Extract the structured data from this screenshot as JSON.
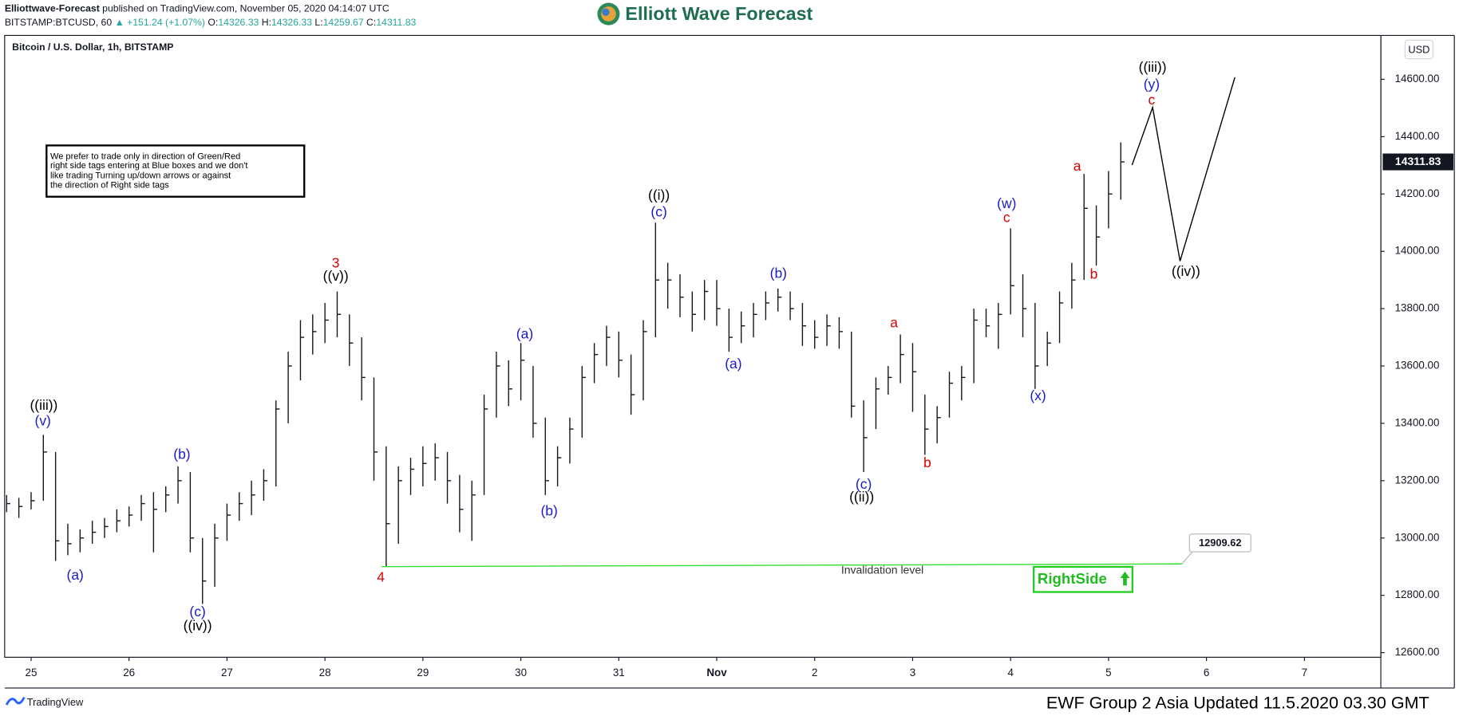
{
  "header": {
    "publisher": "Elliottwave-Forecast",
    "published": "published on TradingView.com, November 05, 2020 04:14:07 UTC",
    "symbol": "BITSTAMP:BTCUSD, 60",
    "change": "▲ +151.24 (+1.07%)",
    "ohlc": [
      {
        "label": "O:",
        "value": "14326.33"
      },
      {
        "label": "H:",
        "value": "14326.33"
      },
      {
        "label": "L:",
        "value": "14259.67"
      },
      {
        "label": "C:",
        "value": "14311.83"
      }
    ],
    "logo": "Elliott Wave Forecast"
  },
  "footer": {
    "brand": "TradingView",
    "update": "EWF Group 2 Asia Updated 11.5.2020 03.30 GMT"
  },
  "chart_data": {
    "type": "ohlc",
    "title": "Bitcoin / U.S. Dollar, 1h, BITSTAMP",
    "currency": "USD",
    "note": [
      "We prefer to trade only in direction of Green/Red",
      "right side tags entering at Blue boxes and we don't",
      "like trading Turning up/down arrows or against",
      "the direction of Right side tags"
    ],
    "badge": "RightSide",
    "color": "#131722",
    "xlim": [
      -0.27,
      13.78
    ],
    "xticks": [
      {
        "value": 0,
        "label": "25"
      },
      {
        "value": 1,
        "label": "26"
      },
      {
        "value": 2,
        "label": "27"
      },
      {
        "value": 3,
        "label": "28"
      },
      {
        "value": 4,
        "label": "29"
      },
      {
        "value": 5,
        "label": "30"
      },
      {
        "value": 6,
        "label": "31"
      },
      {
        "value": 7,
        "label": "Nov"
      },
      {
        "value": 8,
        "label": "2"
      },
      {
        "value": 9,
        "label": "3"
      },
      {
        "value": 10,
        "label": "4"
      },
      {
        "value": 11,
        "label": "5"
      },
      {
        "value": 12,
        "label": "6"
      },
      {
        "value": 13,
        "label": "7"
      }
    ],
    "ylim": [
      12584,
      14753
    ],
    "yticks": [
      {
        "value": 12600,
        "label": "12600.00"
      },
      {
        "value": 12800,
        "label": "12800.00"
      },
      {
        "value": 13000,
        "label": "13000.00"
      },
      {
        "value": 13200,
        "label": "13200.00"
      },
      {
        "value": 13400,
        "label": "13400.00"
      },
      {
        "value": 13600,
        "label": "13600.00"
      },
      {
        "value": 13800,
        "label": "13800.00"
      },
      {
        "value": 14000,
        "label": "14000.00"
      },
      {
        "value": 14200,
        "label": "14200.00"
      },
      {
        "value": 14400,
        "label": "14400.00"
      },
      {
        "value": 14600,
        "label": "14600.00"
      }
    ],
    "x": [
      -0.25,
      -0.125,
      0,
      0.125,
      0.25,
      0.375,
      0.5,
      0.625,
      0.75,
      0.875,
      1,
      1.125,
      1.25,
      1.375,
      1.5,
      1.625,
      1.75,
      1.875,
      2,
      2.125,
      2.25,
      2.375,
      2.5,
      2.625,
      2.75,
      2.875,
      3,
      3.125,
      3.25,
      3.375,
      3.5,
      3.625,
      3.75,
      3.875,
      4,
      4.125,
      4.25,
      4.375,
      4.5,
      4.625,
      4.75,
      4.875,
      5,
      5.125,
      5.25,
      5.375,
      5.5,
      5.625,
      5.75,
      5.875,
      6,
      6.125,
      6.25,
      6.375,
      6.5,
      6.625,
      6.75,
      6.875,
      7,
      7.125,
      7.25,
      7.375,
      7.5,
      7.625,
      7.75,
      7.875,
      8,
      8.125,
      8.25,
      8.375,
      8.5,
      8.625,
      8.75,
      8.875,
      9,
      9.125,
      9.25,
      9.375,
      9.5,
      9.625,
      9.75,
      9.875,
      10,
      10.125,
      10.25,
      10.375,
      10.5,
      10.625,
      10.75,
      10.875,
      11,
      11.125
    ],
    "high": [
      13150,
      13140,
      13160,
      13360,
      13300,
      13050,
      13030,
      13060,
      13070,
      13100,
      13110,
      13150,
      13160,
      13180,
      13250,
      13230,
      13000,
      13050,
      13120,
      13160,
      13200,
      13240,
      13480,
      13650,
      13760,
      13780,
      13820,
      13860,
      13780,
      13700,
      13560,
      13320,
      13250,
      13280,
      13320,
      13330,
      13300,
      13220,
      13200,
      13500,
      13650,
      13620,
      13680,
      13600,
      13420,
      13320,
      13420,
      13600,
      13680,
      13740,
      13720,
      13640,
      13760,
      14100,
      13960,
      13920,
      13860,
      13900,
      13900,
      13800,
      13790,
      13820,
      13860,
      13870,
      13860,
      13820,
      13760,
      13780,
      13770,
      13720,
      13480,
      13560,
      13600,
      13710,
      13680,
      13500,
      13460,
      13580,
      13600,
      13800,
      13800,
      13820,
      14080,
      13920,
      13820,
      13720,
      13860,
      13960,
      14270,
      14160,
      14280,
      14380
    ],
    "low": [
      13090,
      13070,
      13100,
      13130,
      12920,
      12940,
      12950,
      12980,
      13000,
      13020,
      13040,
      13060,
      12950,
      13090,
      13120,
      12950,
      12770,
      12830,
      12990,
      13060,
      13080,
      13130,
      13180,
      13400,
      13550,
      13640,
      13680,
      13700,
      13600,
      13480,
      13200,
      12900,
      12980,
      13150,
      13180,
      13200,
      13120,
      13020,
      12990,
      13150,
      13420,
      13460,
      13480,
      13350,
      13150,
      13180,
      13260,
      13350,
      13540,
      13600,
      13560,
      13430,
      13480,
      13700,
      13800,
      13770,
      13720,
      13760,
      13740,
      13650,
      13680,
      13700,
      13760,
      13790,
      13760,
      13670,
      13660,
      13670,
      13660,
      13420,
      13230,
      13380,
      13500,
      13540,
      13440,
      13290,
      13330,
      13420,
      13480,
      13540,
      13700,
      13660,
      13780,
      13700,
      13520,
      13600,
      13680,
      13800,
      13900,
      13950,
      14080,
      14180
    ],
    "close": [
      13120,
      13110,
      13130,
      13300,
      12990,
      12980,
      13000,
      13020,
      13040,
      13060,
      13080,
      13120,
      13100,
      13150,
      13200,
      13000,
      12850,
      13000,
      13080,
      13120,
      13150,
      13200,
      13450,
      13600,
      13700,
      13720,
      13760,
      13780,
      13680,
      13560,
      13300,
      13050,
      13200,
      13240,
      13260,
      13280,
      13200,
      13100,
      13150,
      13450,
      13600,
      13520,
      13620,
      13400,
      13200,
      13280,
      13380,
      13560,
      13640,
      13700,
      13620,
      13500,
      13720,
      13900,
      13900,
      13840,
      13780,
      13860,
      13800,
      13700,
      13740,
      13780,
      13820,
      13840,
      13800,
      13740,
      13700,
      13740,
      13720,
      13460,
      13350,
      13520,
      13560,
      13640,
      13580,
      13380,
      13420,
      13540,
      13560,
      13760,
      13740,
      13780,
      13880,
      13800,
      13600,
      13680,
      13820,
      13900,
      14150,
      14050,
      14200,
      14311.83
    ],
    "annotations": [
      {
        "text": "((iii))",
        "x": 0.13,
        "y": 13460,
        "color": "#000000"
      },
      {
        "text": "(v)",
        "x": 0.12,
        "y": 13406,
        "color": "#1a1acc"
      },
      {
        "text": "(a)",
        "x": 0.45,
        "y": 12867,
        "color": "#1a1acc"
      },
      {
        "text": "(b)",
        "x": 1.54,
        "y": 13289,
        "color": "#1a1acc"
      },
      {
        "text": "(c)",
        "x": 1.7,
        "y": 12740,
        "color": "#1a1acc"
      },
      {
        "text": "((iv))",
        "x": 1.7,
        "y": 12691,
        "color": "#000000"
      },
      {
        "text": "3",
        "x": 3.11,
        "y": 13956,
        "color": "#dd0000"
      },
      {
        "text": "((v))",
        "x": 3.11,
        "y": 13911,
        "color": "#000000"
      },
      {
        "text": "4",
        "x": 3.57,
        "y": 12860,
        "color": "#dd0000"
      },
      {
        "text": "(a)",
        "x": 5.04,
        "y": 13709,
        "color": "#1a1acc"
      },
      {
        "text": "(b)",
        "x": 5.29,
        "y": 13091,
        "color": "#1a1acc"
      },
      {
        "text": "((i))",
        "x": 6.41,
        "y": 14193,
        "color": "#000000"
      },
      {
        "text": "(c)",
        "x": 6.41,
        "y": 14135,
        "color": "#1a1acc"
      },
      {
        "text": "(a)",
        "x": 7.17,
        "y": 13605,
        "color": "#1a1acc"
      },
      {
        "text": "(b)",
        "x": 7.63,
        "y": 13920,
        "color": "#1a1acc"
      },
      {
        "text": "(c)",
        "x": 8.5,
        "y": 13185,
        "color": "#1a1acc"
      },
      {
        "text": "((ii))",
        "x": 8.48,
        "y": 13140,
        "color": "#000000"
      },
      {
        "text": "a",
        "x": 8.81,
        "y": 13748,
        "color": "#dd0000"
      },
      {
        "text": "b",
        "x": 9.15,
        "y": 13260,
        "color": "#dd0000"
      },
      {
        "text": "(w)",
        "x": 9.96,
        "y": 14164,
        "color": "#1a1acc"
      },
      {
        "text": "c",
        "x": 9.96,
        "y": 14115,
        "color": "#dd0000"
      },
      {
        "text": "(x)",
        "x": 10.28,
        "y": 13494,
        "color": "#1a1acc"
      },
      {
        "text": "a",
        "x": 10.68,
        "y": 14294,
        "color": "#dd0000"
      },
      {
        "text": "b",
        "x": 10.85,
        "y": 13917,
        "color": "#dd0000"
      },
      {
        "text": "((iii))",
        "x": 11.45,
        "y": 14639,
        "color": "#000000"
      },
      {
        "text": "(y)",
        "x": 11.44,
        "y": 14580,
        "color": "#1a1acc"
      },
      {
        "text": "c",
        "x": 11.44,
        "y": 14525,
        "color": "#dd0000"
      },
      {
        "text": "((iv))",
        "x": 11.79,
        "y": 13927,
        "color": "#000000"
      }
    ],
    "projection": {
      "x": [
        11.24,
        11.45,
        11.73,
        12.29
      ],
      "values": [
        14301,
        14502,
        13966,
        14607
      ],
      "color": "#000000"
    },
    "invalidation": {
      "label": "Invalidation level",
      "x": [
        3.58,
        11.75
      ],
      "values": [
        12900,
        12909.62
      ],
      "color": "#33dd33"
    }
  }
}
